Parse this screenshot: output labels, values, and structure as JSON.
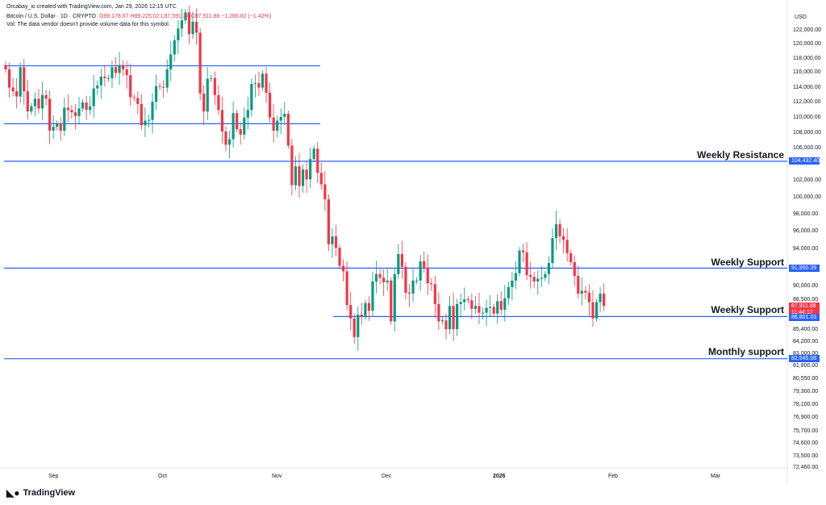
{
  "header": {
    "created_by": "Orcabay_io created with TradingView.com, Jan 29, 2026 12:15 UTC"
  },
  "legend": {
    "symbol": "Bitcoin / U.S. Dollar · 1D · CRYPTO",
    "open": "O89,178.67",
    "high": "H89,225.02",
    "low": "L87,591.34",
    "close": "C87,911.88",
    "change": "−1,266.82 (−1.42%)",
    "volume_note": "Vol: The data vendor doesn't provide volume data for this symbol."
  },
  "price_axis": {
    "currency": "USD",
    "ticks": [
      "122,000.00",
      "120,000.00",
      "118,000.00",
      "116,000.00",
      "114,000.00",
      "112,000.00",
      "110,000.00",
      "108,000.00",
      "106,000.00",
      "102,000.00",
      "100,000.00",
      "98,000.00",
      "96,000.00",
      "94,000.00",
      "90,000.00",
      "88,500.00",
      "85,400.00",
      "84,200.00",
      "83,000.00",
      "81,800.00",
      "80,550.00",
      "79,300.00",
      "78,100.00",
      "76,900.00",
      "75,700.00",
      "74,600.00",
      "73,500.00",
      "72,460.00"
    ],
    "tags": {
      "weekly_resistance": "104,432.40",
      "weekly_support_1": "91,950.39",
      "last_price": "87,911.88",
      "countdown": "11:44:17",
      "weekly_support_2": "86,801.03",
      "monthly_support": "82,545.08"
    }
  },
  "time_axis": {
    "labels": [
      "Sep",
      "Oct",
      "Nov",
      "Dec",
      "2026",
      "Feb",
      "Mar"
    ]
  },
  "annotations": {
    "weekly_resistance": "Weekly Resistance",
    "weekly_support_1": "Weekly Support",
    "weekly_support_2": "Weekly Support",
    "monthly_support": "Monthly support"
  },
  "brand": {
    "name": "TradingView"
  },
  "colors": {
    "up": "#089981",
    "down": "#f23645",
    "line": "#2962ff"
  },
  "chart_data": {
    "type": "candlestick",
    "start": "2025-08-18",
    "interval": "1D",
    "scale": "log",
    "levels": [
      117000,
      109200,
      104432.4,
      91950.39,
      86801.03,
      82545.08
    ],
    "closes": [
      116500,
      114000,
      113500,
      112800,
      116800,
      113500,
      110800,
      111500,
      112500,
      111200,
      113000,
      112500,
      108300,
      108800,
      109200,
      108300,
      111300,
      111000,
      110700,
      110200,
      111200,
      112000,
      111000,
      111500,
      113900,
      114300,
      115500,
      115300,
      115300,
      116800,
      116000,
      117100,
      116500,
      115700,
      112700,
      112600,
      111800,
      109000,
      109600,
      109700,
      112100,
      114200,
      114100,
      114000,
      116500,
      118600,
      120600,
      122300,
      123500,
      124700,
      121500,
      123300,
      121700,
      113200,
      110800,
      115200,
      115300,
      113000,
      111000,
      108200,
      106500,
      107200,
      110600,
      108500,
      107800,
      110000,
      111000,
      114500,
      114600,
      114000,
      115900,
      113300,
      110000,
      108300,
      109600,
      110100,
      110500,
      106400,
      101500,
      103800,
      101400,
      103400,
      102200,
      104700,
      106000,
      103000,
      101600,
      99800,
      94600,
      95500,
      94200,
      92200,
      91600,
      88000,
      86600,
      84700,
      87000,
      86800,
      88200,
      87400,
      90500,
      91300,
      90900,
      90400,
      90600,
      86300,
      91300,
      93500,
      92100,
      89300,
      89200,
      90600,
      90600,
      92700,
      92000,
      90300,
      90200,
      88100,
      86300,
      86400,
      85500,
      87900,
      85500,
      88100,
      88300,
      88600,
      88500,
      87600,
      87900,
      87200,
      87200,
      87700,
      87800,
      87100,
      88400,
      87500,
      88700,
      89900,
      90600,
      91400,
      93900,
      93700,
      91200,
      91000,
      90500,
      90800,
      90900,
      91300,
      92500,
      95300,
      96900,
      95500,
      95100,
      93600,
      92600,
      91100,
      89200,
      89500,
      89300,
      88300,
      86600,
      88300,
      89200,
      87900
    ]
  }
}
